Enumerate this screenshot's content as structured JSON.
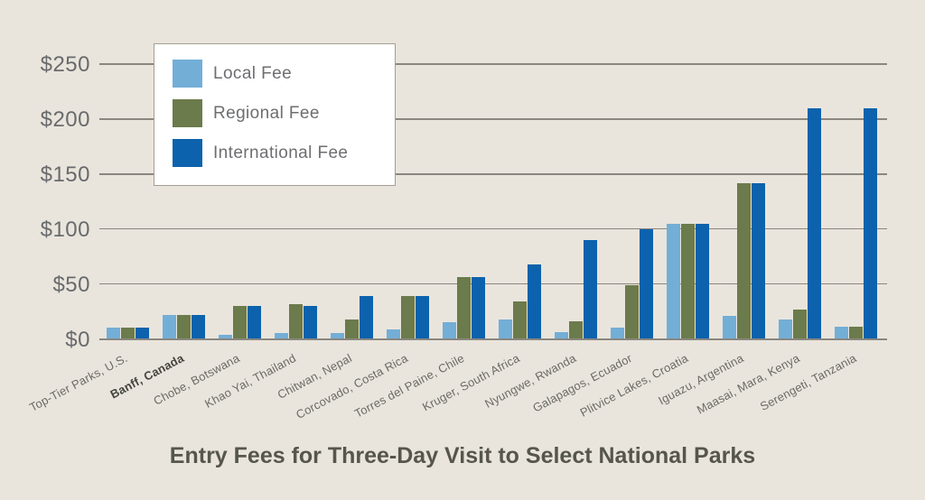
{
  "background_color": "#e9e5dd",
  "title": "Entry Fees for Three-Day Visit to Select National Parks",
  "chart_data": {
    "type": "bar",
    "title": "Entry Fees for Three-Day Visit to Select National Parks",
    "categories": [
      "Top-Tier Parks, U.S.",
      "Banff, Canada",
      "Chobe, Botswana",
      "Khao Yai, Thailand",
      "Chitwan, Nepal",
      "Corcovado, Costa Rica",
      "Torres del Paine, Chile",
      "Kruger, South Africa",
      "Nyungwe, Rwanda",
      "Galapagos, Ecuador",
      "Plitvice Lakes, Croatia",
      "Iguazu, Argentina",
      "Maasai, Mara, Kenya",
      "Serengeti, Tanzania"
    ],
    "emphasized_category": "Banff, Canada",
    "emphasis_index": 1,
    "series": [
      {
        "name": "Local Fee",
        "color": "#73aed7",
        "values": [
          10,
          22,
          4,
          5,
          5,
          9,
          15,
          18,
          6,
          10,
          105,
          21,
          18,
          11
        ]
      },
      {
        "name": "Regional Fee",
        "color": "#6b7b4b",
        "values": [
          10,
          22,
          30,
          32,
          18,
          39,
          56,
          34,
          16,
          49,
          105,
          142,
          27,
          11
        ]
      },
      {
        "name": "International Fee",
        "color": "#0c62ac",
        "values": [
          10,
          22,
          30,
          30,
          39,
          39,
          56,
          68,
          90,
          100,
          105,
          142,
          210,
          210
        ]
      }
    ],
    "y_ticks": [
      {
        "label": "$0",
        "value": 0
      },
      {
        "label": "$50",
        "value": 50
      },
      {
        "label": "$100",
        "value": 100
      },
      {
        "label": "$150",
        "value": 150
      },
      {
        "label": "$200",
        "value": 200
      },
      {
        "label": "$250",
        "value": 250
      }
    ],
    "ylim": [
      0,
      250
    ],
    "grid": true,
    "legend_position": "top-left-inside",
    "xlabel": "",
    "ylabel": ""
  }
}
